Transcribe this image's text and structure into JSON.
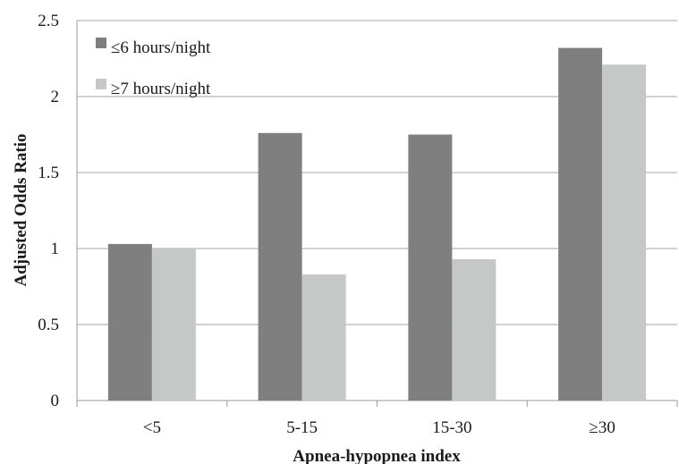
{
  "chart_data": {
    "type": "bar",
    "categories": [
      "<5",
      "5-15",
      "15-30",
      "≥30"
    ],
    "series": [
      {
        "name": "≤6 hours/night",
        "color": "#7f7f7f",
        "values": [
          1.03,
          1.76,
          1.75,
          2.32
        ]
      },
      {
        "name": "≥7 hours/night",
        "color": "#c6c8c8",
        "values": [
          1.0,
          0.83,
          0.93,
          2.21
        ]
      }
    ],
    "xlabel": "Apnea-hypopnea index",
    "ylabel": "Adjusted Odds Ratio",
    "ylim": [
      0,
      2.5
    ],
    "yticks": [
      "0",
      "0.5",
      "1",
      "1.5",
      "2",
      "2.5"
    ],
    "grid": true,
    "legend_position": "top-left"
  }
}
